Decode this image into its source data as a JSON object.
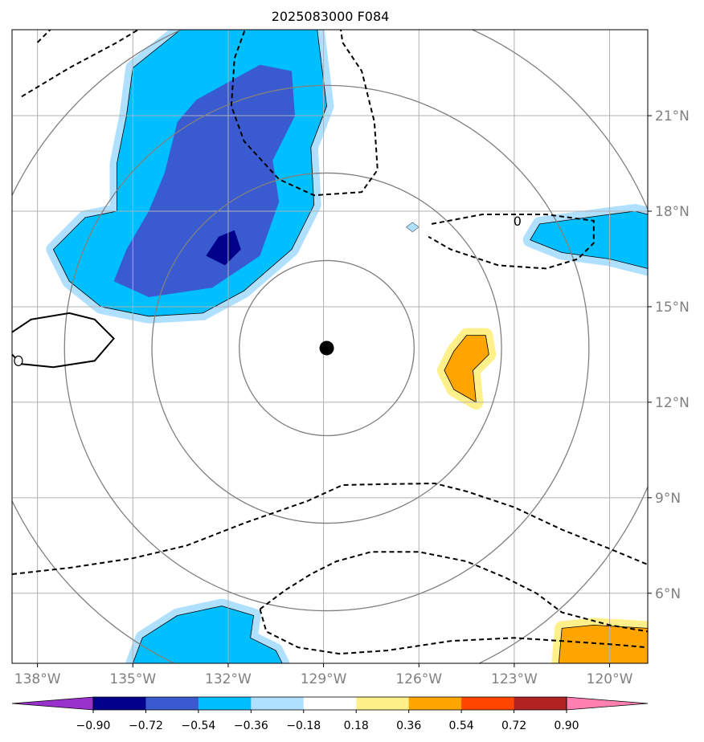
{
  "chart_data": {
    "type": "contour-map",
    "title": "2025083000 F084",
    "x_axis": {
      "ticks": [
        -138,
        -135,
        -132,
        -129,
        -126,
        -123,
        -120
      ],
      "tick_labels": [
        "138°W",
        "135°W",
        "132°W",
        "129°W",
        "126°W",
        "123°W",
        "120°W"
      ],
      "range": [
        -138.8,
        -118.8
      ]
    },
    "y_axis": {
      "ticks": [
        6,
        9,
        12,
        15,
        18,
        21
      ],
      "tick_labels": [
        "6°N",
        "9°N",
        "12°N",
        "15°N",
        "18°N",
        "21°N"
      ],
      "range": [
        3.8,
        23.7
      ]
    },
    "center": {
      "lon": -128.9,
      "lat": 13.7
    },
    "range_rings_deg": [
      2.75,
      5.5,
      8.25,
      11.0
    ],
    "colorbar": {
      "levels": [
        -0.9,
        -0.72,
        -0.54,
        -0.36,
        -0.18,
        0.18,
        0.36,
        0.54,
        0.72,
        0.9
      ],
      "level_labels": [
        "−0.90",
        "−0.72",
        "−0.54",
        "−0.36",
        "−0.18",
        "0.18",
        "0.36",
        "0.54",
        "0.72",
        "0.90"
      ],
      "colors": [
        "#9932cc",
        "#00008b",
        "#3a5bd0",
        "#00bfff",
        "#b0e0ff",
        "#ffffff",
        "#fff08a",
        "#ffa500",
        "#ff4500",
        "#b22222",
        "#ff80b0"
      ]
    },
    "line_contours": {
      "label": "0",
      "negative_style": "dashed",
      "positive_style": "solid"
    },
    "filled_regions": [
      {
        "name": "northwest-negative",
        "fill": "#00bfff",
        "outer": "#b0e0ff",
        "points": [
          [
            -135.0,
            22.5
          ],
          [
            -133.5,
            23.7
          ],
          [
            -129.2,
            23.7
          ],
          [
            -128.9,
            21.3
          ],
          [
            -129.4,
            20.0
          ],
          [
            -129.3,
            18.2
          ],
          [
            -130.0,
            16.8
          ],
          [
            -131.5,
            15.5
          ],
          [
            -132.8,
            14.8
          ],
          [
            -134.5,
            14.7
          ],
          [
            -136.0,
            15.0
          ],
          [
            -137.0,
            15.8
          ],
          [
            -137.5,
            16.8
          ],
          [
            -136.5,
            17.8
          ],
          [
            -135.5,
            18.0
          ],
          [
            -135.5,
            19.5
          ],
          [
            -135.2,
            21.0
          ]
        ]
      },
      {
        "name": "northwest-core",
        "fill": "#3a5bd0",
        "points": [
          [
            -133.0,
            21.5
          ],
          [
            -131.0,
            22.6
          ],
          [
            -130.0,
            22.4
          ],
          [
            -129.9,
            21.0
          ],
          [
            -130.6,
            19.6
          ],
          [
            -130.4,
            18.3
          ],
          [
            -131.0,
            16.6
          ],
          [
            -132.5,
            15.6
          ],
          [
            -134.5,
            15.3
          ],
          [
            -135.6,
            15.8
          ],
          [
            -135.2,
            16.8
          ],
          [
            -134.5,
            18.0
          ],
          [
            -134.0,
            19.2
          ],
          [
            -133.6,
            20.8
          ]
        ]
      },
      {
        "name": "northwest-peak",
        "fill": "#00008b",
        "points": [
          [
            -132.3,
            17.2
          ],
          [
            -131.8,
            17.4
          ],
          [
            -131.6,
            16.8
          ],
          [
            -132.1,
            16.3
          ],
          [
            -132.7,
            16.6
          ]
        ]
      },
      {
        "name": "east-negative",
        "fill": "#00bfff",
        "outer": "#b0e0ff",
        "points": [
          [
            -122.2,
            17.6
          ],
          [
            -120.0,
            17.9
          ],
          [
            -119.2,
            18.0
          ],
          [
            -118.8,
            17.9
          ],
          [
            -118.8,
            16.2
          ],
          [
            -120.0,
            16.5
          ],
          [
            -121.5,
            16.7
          ],
          [
            -122.5,
            17.1
          ]
        ]
      },
      {
        "name": "east-positive",
        "fill": "#ffa500",
        "outer": "#fff08a",
        "points": [
          [
            -124.5,
            14.1
          ],
          [
            -123.9,
            14.1
          ],
          [
            -123.8,
            13.5
          ],
          [
            -124.3,
            13.0
          ],
          [
            -124.2,
            12.0
          ],
          [
            -124.9,
            12.4
          ],
          [
            -125.2,
            13.0
          ],
          [
            -124.9,
            13.6
          ]
        ]
      },
      {
        "name": "south-negative",
        "fill": "#00bfff",
        "outer": "#b0e0ff",
        "points": [
          [
            -135.0,
            3.8
          ],
          [
            -134.7,
            4.6
          ],
          [
            -133.6,
            5.3
          ],
          [
            -132.2,
            5.6
          ],
          [
            -131.2,
            5.3
          ],
          [
            -131.3,
            4.6
          ],
          [
            -130.5,
            4.2
          ],
          [
            -130.3,
            3.8
          ]
        ]
      },
      {
        "name": "southeast-positive",
        "fill": "#ffa500",
        "outer": "#fff08a",
        "points": [
          [
            -121.6,
            3.8
          ],
          [
            -121.5,
            4.9
          ],
          [
            -120.5,
            5.0
          ],
          [
            -118.8,
            4.9
          ],
          [
            -118.8,
            3.8
          ]
        ]
      }
    ]
  }
}
